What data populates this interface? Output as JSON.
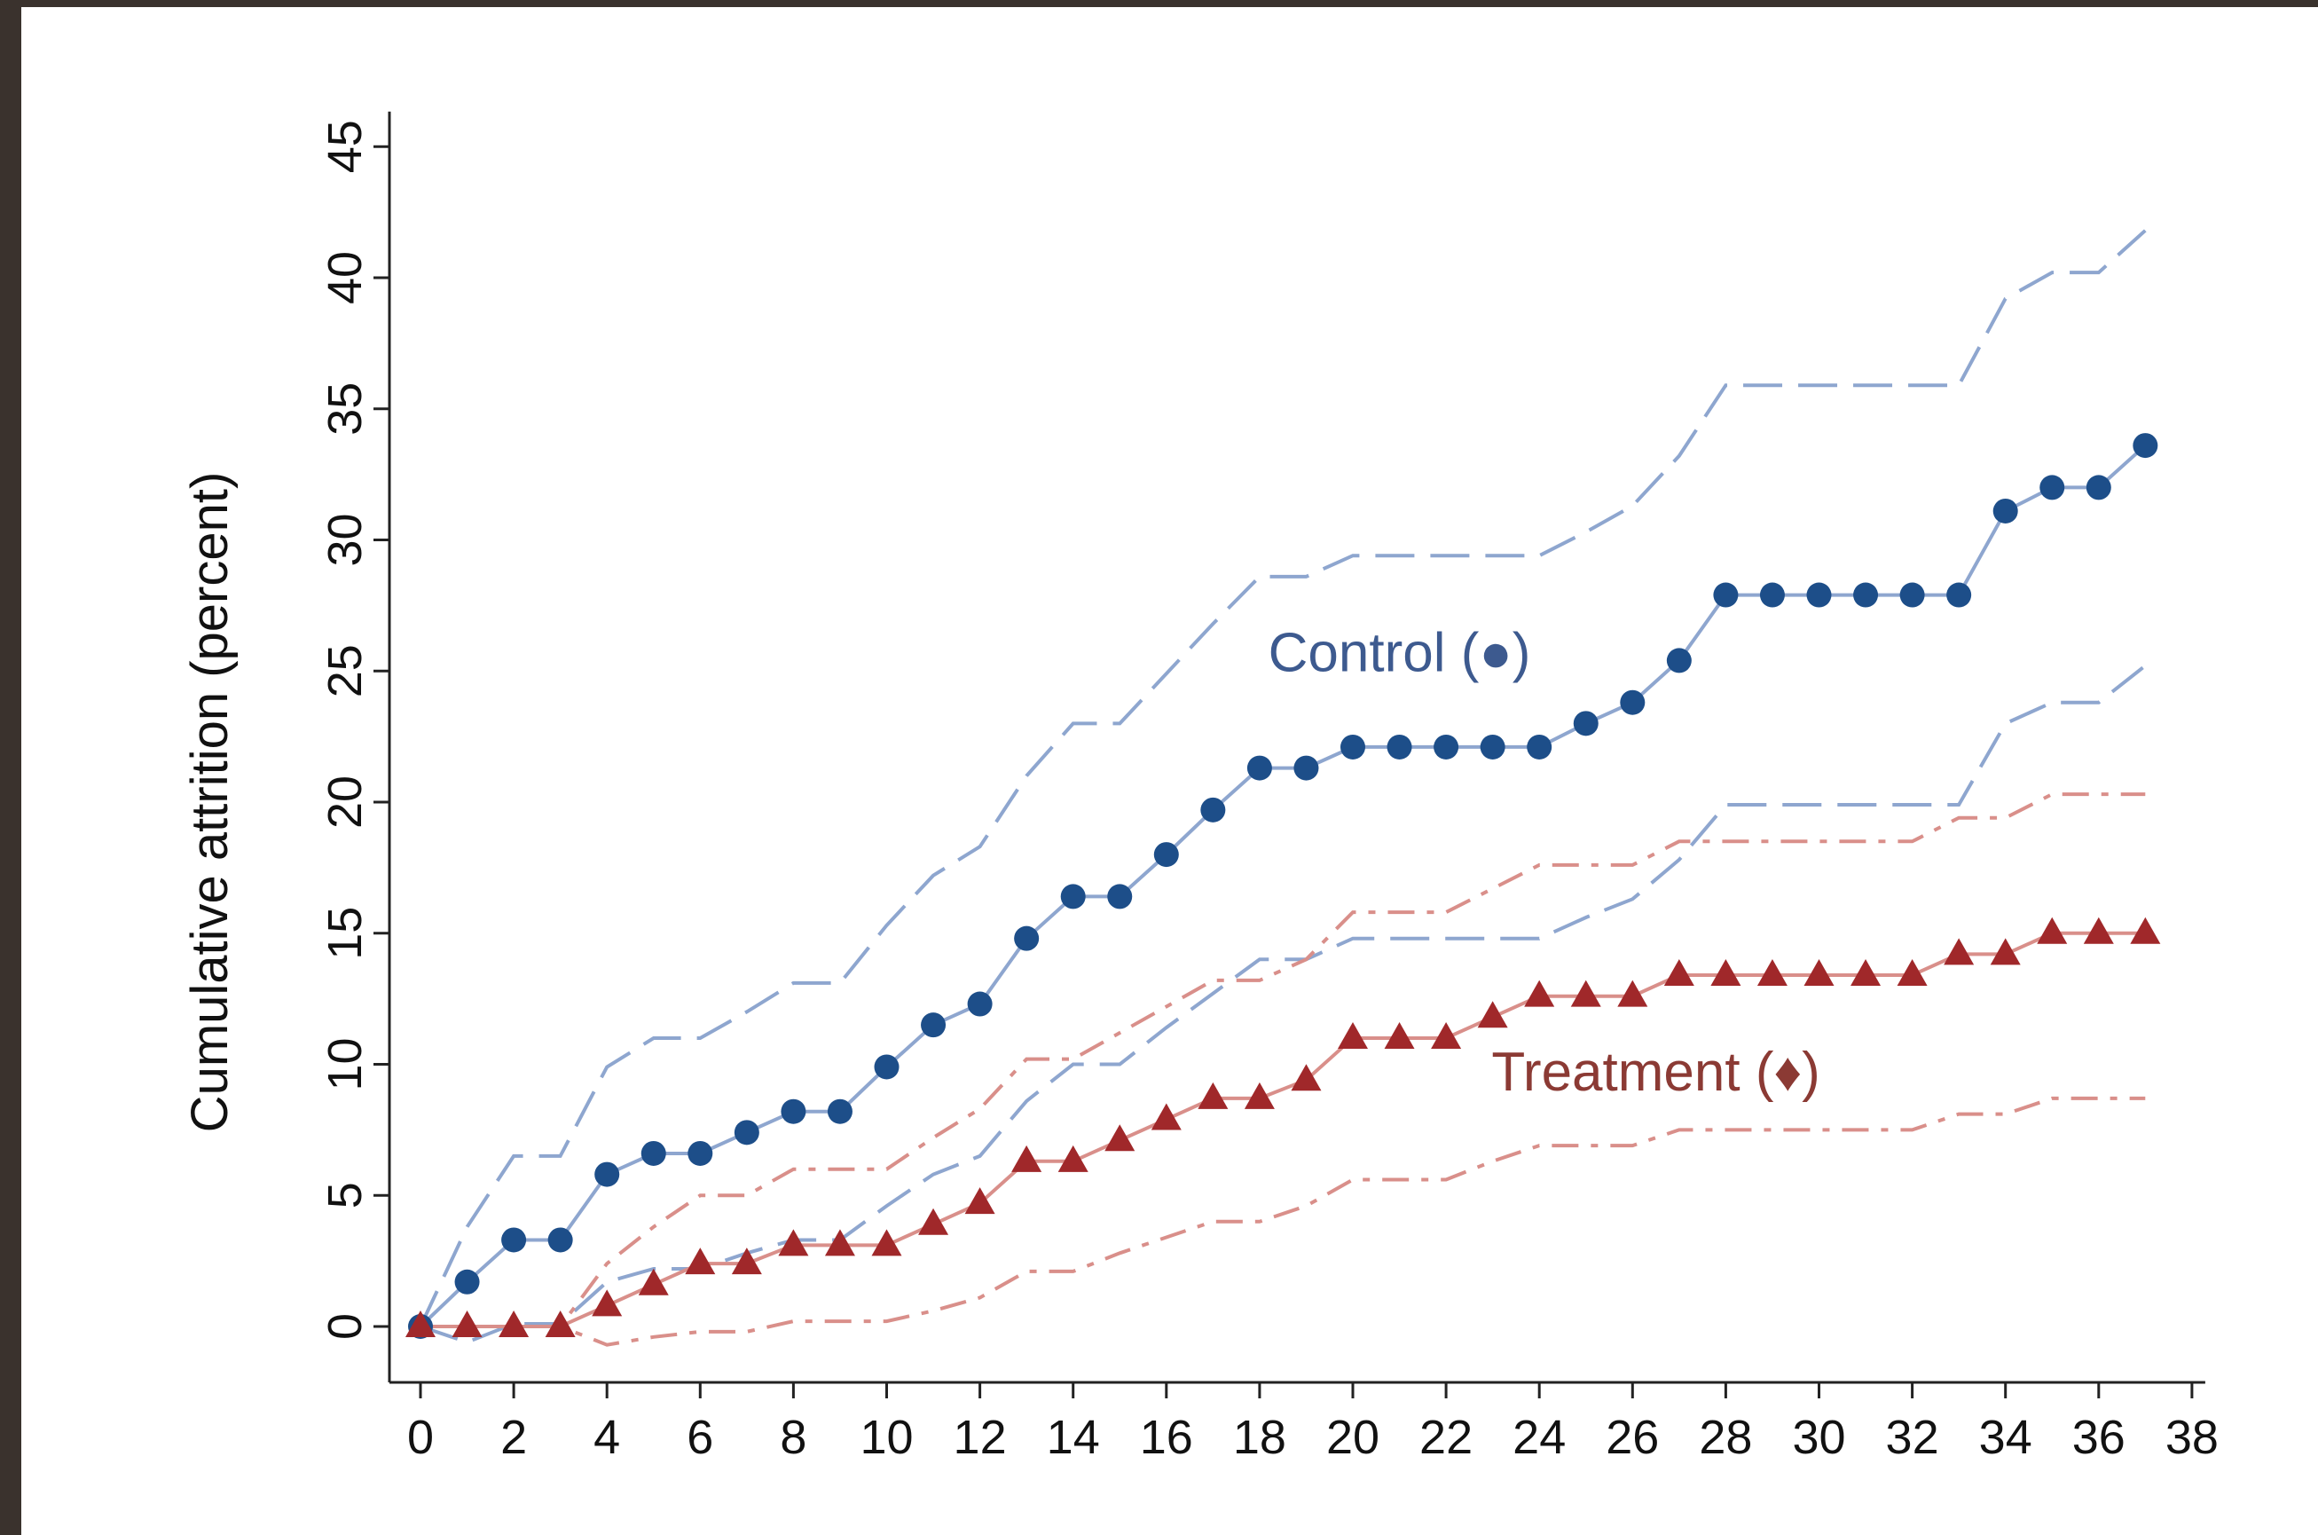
{
  "chart_data": {
    "type": "line",
    "title": "",
    "xlabel": "",
    "ylabel": "Cumulative attrition (percent)",
    "xlim": [
      -1,
      38
    ],
    "ylim": [
      -2,
      46
    ],
    "x_ticks": [
      0,
      2,
      4,
      6,
      8,
      10,
      12,
      14,
      16,
      18,
      20,
      22,
      24,
      26,
      28,
      30,
      32,
      34,
      36,
      38
    ],
    "y_ticks": [
      0,
      5,
      10,
      15,
      20,
      25,
      30,
      35,
      40,
      45
    ],
    "grid": false,
    "x": [
      0,
      1,
      2,
      3,
      4,
      5,
      6,
      7,
      8,
      9,
      10,
      11,
      12,
      13,
      14,
      15,
      16,
      17,
      18,
      19,
      20,
      21,
      22,
      23,
      24,
      25,
      26,
      27,
      28,
      29,
      30,
      31,
      32,
      33,
      34,
      35,
      36,
      37
    ],
    "series": [
      {
        "name": "Control",
        "marker": "circle",
        "color": "#1d4e89",
        "values": [
          0,
          1.7,
          3.3,
          3.3,
          5.8,
          6.6,
          6.6,
          7.4,
          8.2,
          8.2,
          9.9,
          11.5,
          12.3,
          14.8,
          16.4,
          16.4,
          18.0,
          19.7,
          21.3,
          21.3,
          22.1,
          22.1,
          22.1,
          22.1,
          22.1,
          23.0,
          23.8,
          25.4,
          27.9,
          27.9,
          27.9,
          27.9,
          27.9,
          27.9,
          31.1,
          32.0,
          32.0,
          33.6
        ],
        "ci_upper": [
          0,
          3.8,
          6.5,
          6.5,
          9.9,
          11.0,
          11.0,
          12.0,
          13.1,
          13.1,
          15.3,
          17.2,
          18.3,
          21.0,
          23.0,
          23.0,
          24.9,
          26.8,
          28.6,
          28.6,
          29.4,
          29.4,
          29.4,
          29.4,
          29.4,
          30.3,
          31.3,
          33.2,
          35.9,
          35.9,
          35.9,
          35.9,
          35.9,
          35.9,
          39.2,
          40.2,
          40.2,
          41.8
        ],
        "ci_lower": [
          0,
          -0.6,
          0.1,
          0.1,
          1.7,
          2.2,
          2.2,
          2.8,
          3.3,
          3.3,
          4.6,
          5.8,
          6.5,
          8.6,
          10.0,
          10.0,
          11.4,
          12.7,
          14.0,
          14.0,
          14.8,
          14.8,
          14.8,
          14.8,
          14.8,
          15.6,
          16.3,
          17.8,
          19.9,
          19.9,
          19.9,
          19.9,
          19.9,
          19.9,
          23.0,
          23.8,
          23.8,
          25.2
        ]
      },
      {
        "name": "Treatment",
        "marker": "triangle",
        "color": "#a0282a",
        "values": [
          0,
          0,
          0,
          0,
          0.8,
          1.6,
          2.4,
          2.4,
          3.1,
          3.1,
          3.1,
          3.9,
          4.7,
          6.3,
          6.3,
          7.1,
          7.9,
          8.7,
          8.7,
          9.4,
          11.0,
          11.0,
          11.0,
          11.8,
          12.6,
          12.6,
          12.6,
          13.4,
          13.4,
          13.4,
          13.4,
          13.4,
          13.4,
          14.2,
          14.2,
          15.0,
          15.0,
          15.0
        ],
        "ci_upper": [
          0,
          0,
          0,
          0,
          2.4,
          3.8,
          5.0,
          5.0,
          6.0,
          6.0,
          6.0,
          7.2,
          8.3,
          10.2,
          10.2,
          11.2,
          12.2,
          13.2,
          13.2,
          14.0,
          15.8,
          15.8,
          15.8,
          16.7,
          17.6,
          17.6,
          17.6,
          18.5,
          18.5,
          18.5,
          18.5,
          18.5,
          18.5,
          19.4,
          19.4,
          20.3,
          20.3,
          20.3
        ],
        "ci_lower": [
          0,
          0,
          0,
          0,
          -0.7,
          -0.4,
          -0.2,
          -0.2,
          0.2,
          0.2,
          0.2,
          0.6,
          1.1,
          2.1,
          2.1,
          2.8,
          3.4,
          4.0,
          4.0,
          4.6,
          5.6,
          5.6,
          5.6,
          6.3,
          6.9,
          6.9,
          6.9,
          7.5,
          7.5,
          7.5,
          7.5,
          7.5,
          7.5,
          8.1,
          8.1,
          8.7,
          8.7,
          8.7
        ]
      }
    ],
    "annotations": [
      {
        "text": "Control (●)",
        "x": 21,
        "y": 25,
        "color": "#3d5a8f"
      },
      {
        "text": "Treatment (♦)",
        "x": 26.5,
        "y": 9,
        "color": "#8b3a34"
      }
    ]
  }
}
